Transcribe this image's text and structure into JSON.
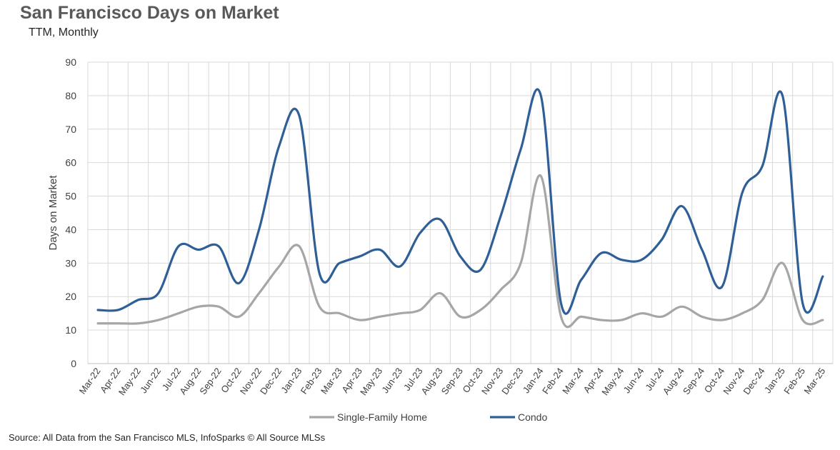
{
  "header": {
    "title": "San Francisco Days on Market",
    "subtitle": "TTM, Monthly"
  },
  "footer": {
    "source": "Source: All Data from the San Francisco MLS, InfoSparks © All Source MLSs"
  },
  "colors": {
    "single_family": "#a6a6a6",
    "condo": "#2e5f96",
    "grid": "#d9d9d9"
  },
  "chart_data": {
    "type": "line",
    "ylabel": "Days on Market",
    "ylim": [
      0,
      90
    ],
    "yticks": [
      0,
      10,
      20,
      30,
      40,
      50,
      60,
      70,
      80,
      90
    ],
    "grid": true,
    "legend_position": "bottom",
    "categories": [
      "Mar-22",
      "Apr-22",
      "May-22",
      "Jun-22",
      "Jul-22",
      "Aug-22",
      "Sep-22",
      "Oct-22",
      "Nov-22",
      "Dec-22",
      "Jan-23",
      "Feb-23",
      "Mar-23",
      "Apr-23",
      "May-23",
      "Jun-23",
      "Jul-23",
      "Aug-23",
      "Sep-23",
      "Oct-23",
      "Nov-23",
      "Dec-23",
      "Jan-24",
      "Feb-24",
      "Mar-24",
      "Apr-24",
      "May-24",
      "Jun-24",
      "Jul-24",
      "Aug-24",
      "Sep-24",
      "Oct-24",
      "Nov-24",
      "Dec-24",
      "Jan-25",
      "Feb-25",
      "Mar-25"
    ],
    "series": [
      {
        "name": "Single-Family Home",
        "values": [
          12,
          12,
          12,
          13,
          15,
          17,
          17,
          14,
          21,
          29,
          35,
          17,
          15,
          13,
          14,
          15,
          16,
          21,
          14,
          16,
          22,
          30,
          56,
          14,
          14,
          13,
          13,
          15,
          14,
          17,
          14,
          13,
          15,
          19,
          30,
          13,
          13
        ]
      },
      {
        "name": "Condo",
        "values": [
          16,
          16,
          19,
          21,
          35,
          34,
          35,
          24,
          40,
          65,
          74,
          27,
          30,
          32,
          34,
          29,
          39,
          43,
          32,
          28,
          44,
          64,
          80,
          18,
          25,
          33,
          31,
          31,
          37,
          47,
          34,
          23,
          51,
          59,
          80,
          18,
          26
        ]
      }
    ]
  }
}
